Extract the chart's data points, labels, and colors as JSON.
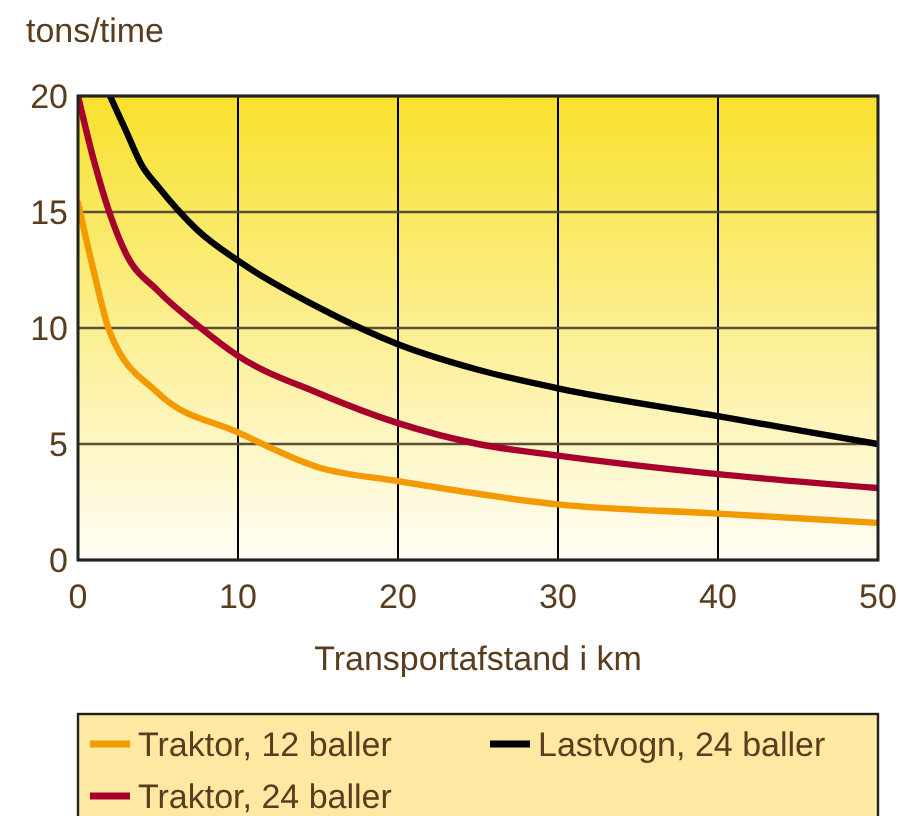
{
  "chart_data": {
    "type": "line",
    "ylabel": "tons/time",
    "xlabel": "Transportafstand i km",
    "xlim": [
      0,
      50
    ],
    "ylim": [
      0,
      20
    ],
    "xticks": [
      0,
      10,
      20,
      30,
      40,
      50
    ],
    "yticks": [
      0,
      5,
      10,
      15,
      20
    ],
    "grid": true,
    "legend": "bottom",
    "marker": "none",
    "line_style": "solid",
    "series": [
      {
        "name": "Traktor, 12 baller",
        "color": "#f29a00",
        "x": [
          0,
          1,
          2,
          5,
          10,
          15,
          20,
          30,
          40,
          50
        ],
        "values": [
          15.4,
          12.4,
          9.8,
          7.2,
          5.5,
          4.0,
          3.4,
          2.4,
          2.0,
          1.6
        ]
      },
      {
        "name": "Lastvogn, 24 baller",
        "color": "#000000",
        "x": [
          2,
          3,
          4,
          5,
          7.5,
          10,
          15,
          20,
          25,
          30,
          40,
          50
        ],
        "values": [
          20,
          18.5,
          17.0,
          16.1,
          14.2,
          12.9,
          10.9,
          9.3,
          8.2,
          7.4,
          6.2,
          5.0
        ]
      },
      {
        "name": "Traktor, 24 baller",
        "color": "#a8002d",
        "x": [
          0,
          1,
          2,
          3,
          5,
          7.5,
          10,
          15,
          20,
          25,
          30,
          40,
          50
        ],
        "values": [
          20,
          17.2,
          14.9,
          13.2,
          11.6,
          10.1,
          8.8,
          7.2,
          5.9,
          5.0,
          4.5,
          3.7,
          3.1
        ]
      }
    ]
  }
}
